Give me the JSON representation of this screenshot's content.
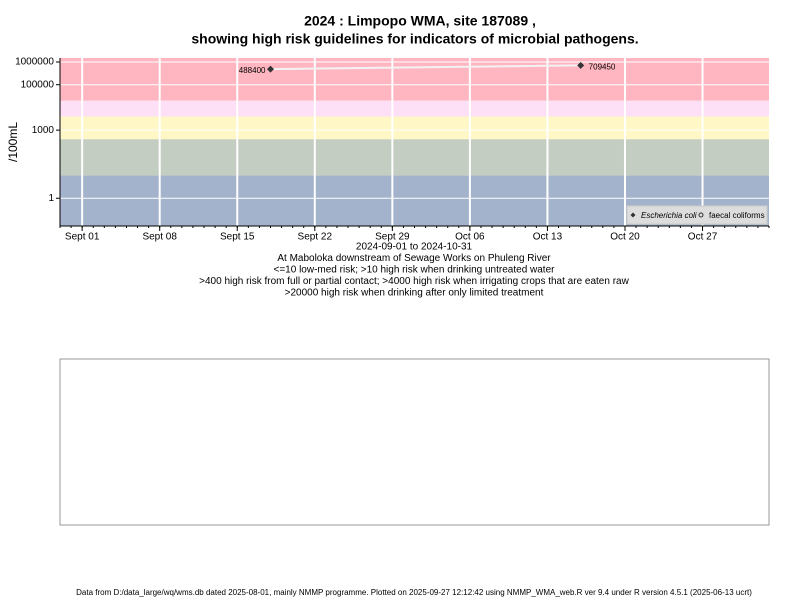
{
  "chart_data": {
    "type": "scatter",
    "title": [
      "2024 : Limpopo WMA, site 187089 ,",
      "showing high risk guidelines for indicators of microbial pathogens."
    ],
    "ylabel": "/100mL",
    "subtitle": [
      "2024-09-01 to 2024-10-31",
      "At Maboloka downstream of Sewage Works on Phuleng River",
      "<=10 low-med risk; >10 high risk when drinking untreated water",
      ">400 high risk from full or partial contact; >4000 high risk when irrigating crops that are eaten raw",
      ">20000 high risk when drinking after only limited treatment"
    ],
    "footer": "Data from D:/data_large/wq/wms.db dated 2025-08-01, mainly NMMP programme. Plotted on 2025-09-27 12:12:42 using NMMP_WMA_web.R ver 9.4 under R version 4.5.1 (2025-06-13 ucrt)",
    "log_y": true,
    "ylim": [
      0.06,
      1500000
    ],
    "yticks": [
      1,
      1000,
      100000,
      1000000
    ],
    "xlim": [
      "2024-08-30",
      "2024-11-02"
    ],
    "xticks": [
      {
        "value": "2024-09-01",
        "label": "Sept 01"
      },
      {
        "value": "2024-09-08",
        "label": "Sept 08"
      },
      {
        "value": "2024-09-15",
        "label": "Sept 15"
      },
      {
        "value": "2024-09-22",
        "label": "Sept 22"
      },
      {
        "value": "2024-09-29",
        "label": "Sept 29"
      },
      {
        "value": "2024-10-06",
        "label": "Oct 06"
      },
      {
        "value": "2024-10-13",
        "label": "Oct 13"
      },
      {
        "value": "2024-10-20",
        "label": "Oct 20"
      },
      {
        "value": "2024-10-27",
        "label": "Oct 27"
      }
    ],
    "grid": true,
    "thresholds": [
      10,
      400,
      4000,
      20000
    ],
    "band_colors": [
      "#a3b3cb",
      "#c3cdc2",
      "#fff7c6",
      "#fde0f6",
      "#ffb6c1"
    ],
    "legend": "lower right",
    "series": [
      {
        "name": "Escherichia coli",
        "color": "#333333",
        "line_color": "#f2f2f2",
        "marker": "diamond",
        "x": [
          "2024-09-18",
          "2024-10-16"
        ],
        "values": [
          488400,
          709450
        ]
      },
      {
        "name": "faecal coliforms",
        "color": "#333333",
        "marker": "circle",
        "x": [],
        "values": []
      }
    ]
  }
}
